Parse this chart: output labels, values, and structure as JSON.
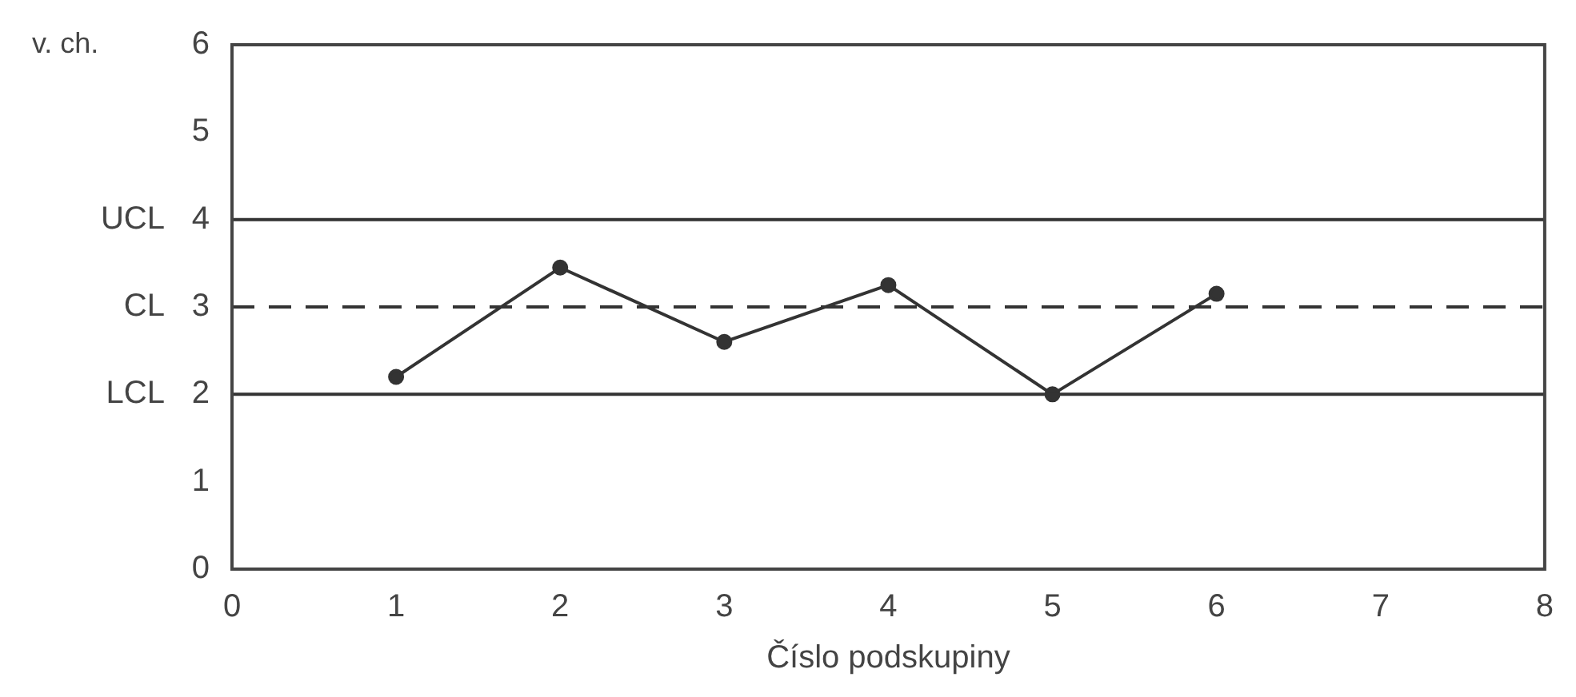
{
  "chart_data": {
    "type": "line",
    "xlabel": "Číslo podskupiny",
    "ylabel": "v. ch.",
    "x": [
      1,
      2,
      3,
      4,
      5,
      6
    ],
    "series": [
      {
        "color": "#333333",
        "values": [
          2.2,
          3.45,
          2.6,
          3.25,
          2.0,
          3.15
        ]
      }
    ],
    "xlim": [
      0,
      8
    ],
    "xticks": [
      0,
      1,
      2,
      3,
      4,
      5,
      6,
      7,
      8
    ],
    "ylim": [
      0,
      6
    ],
    "yticks": [
      0,
      1,
      2,
      3,
      4,
      5,
      6
    ],
    "ref_lines": [
      {
        "axis": "y",
        "value": 4,
        "label": "UCL",
        "color": "#333333",
        "line_style": "solid"
      },
      {
        "axis": "y",
        "value": 3,
        "label": "CL",
        "color": "#333333",
        "line_style": "dashed"
      },
      {
        "axis": "y",
        "value": 2,
        "label": "LCL",
        "color": "#333333",
        "line_style": "solid"
      }
    ],
    "grid": false,
    "legend": false,
    "marker": "circle",
    "line_style": "solid"
  }
}
